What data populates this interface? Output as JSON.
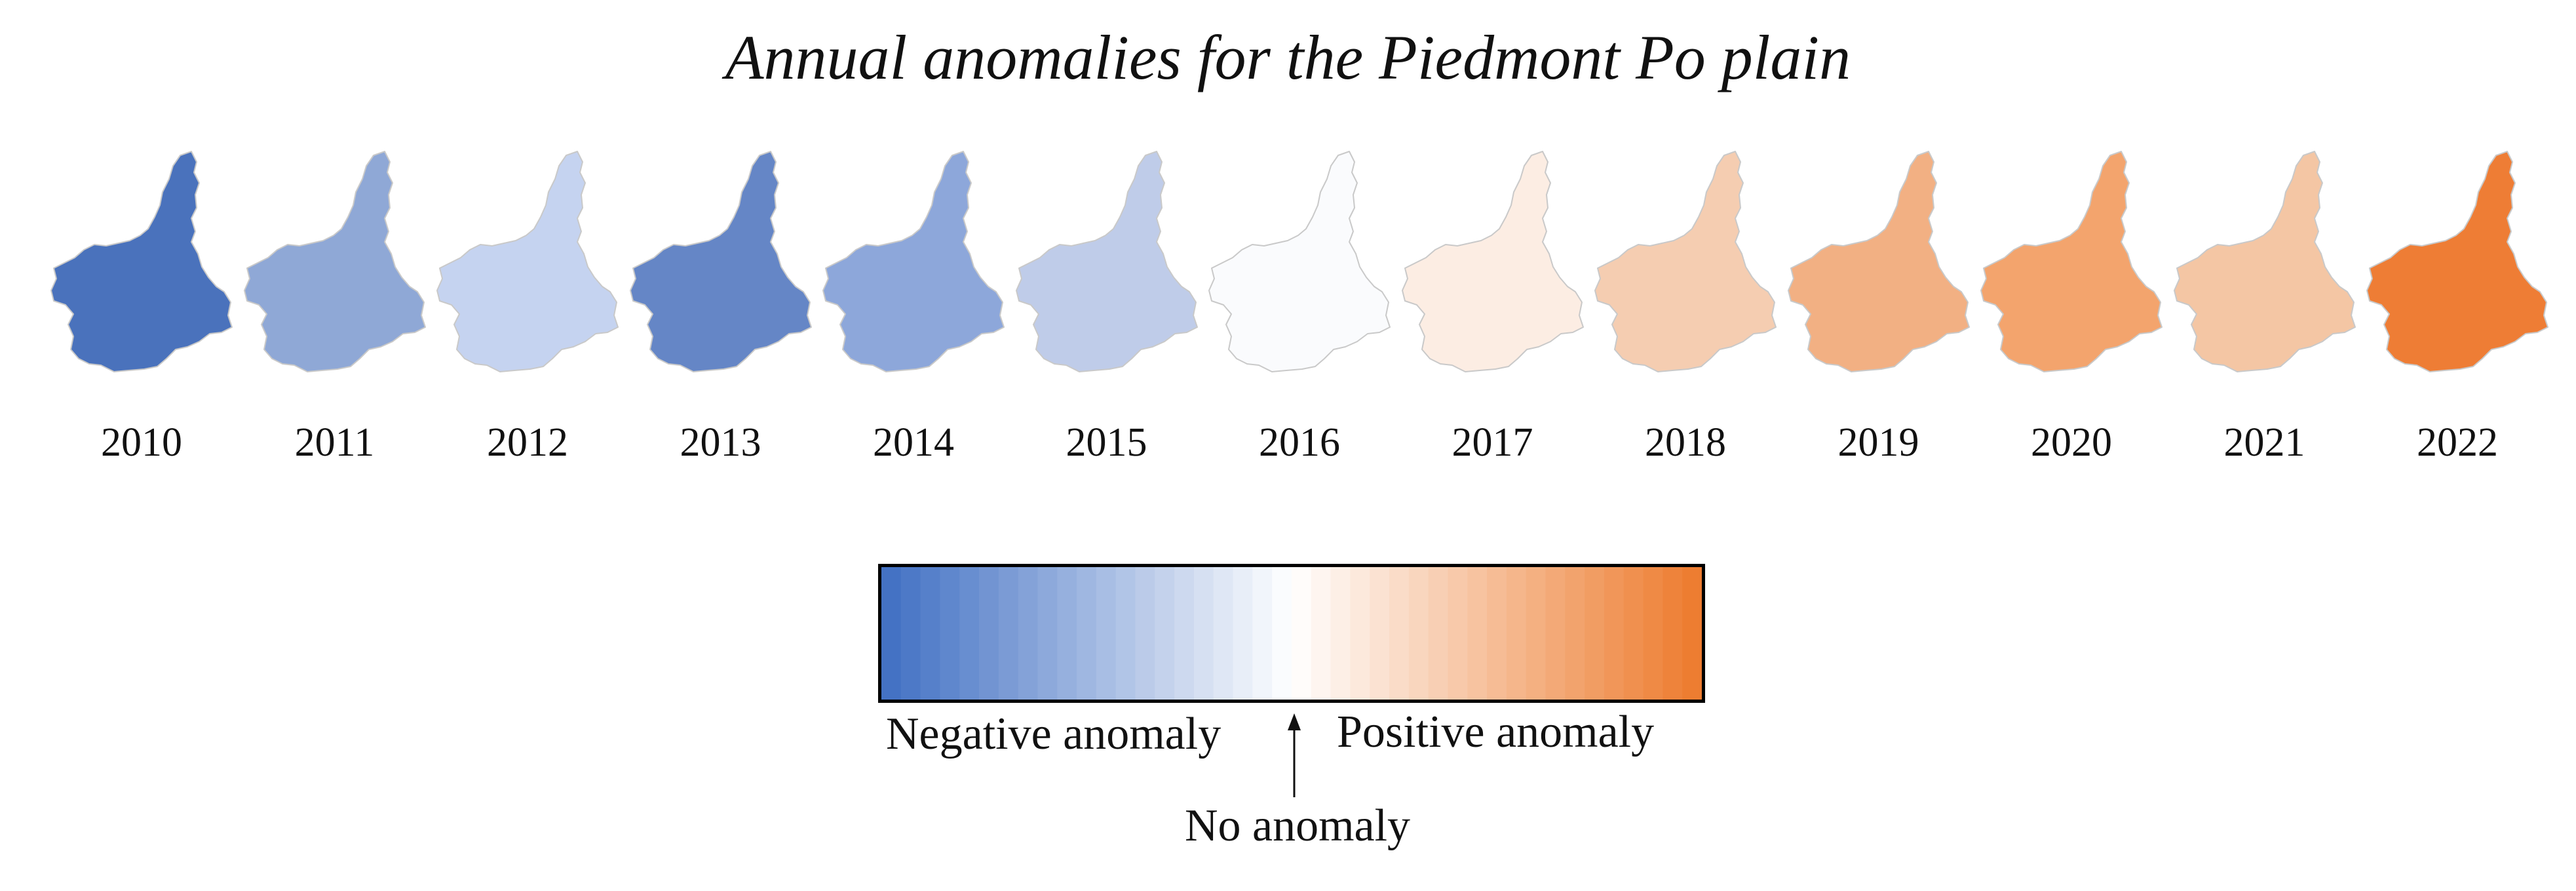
{
  "title": "Annual anomalies for the Piedmont Po plain",
  "region_icon": "piedmont-region-outline",
  "years": [
    {
      "label": "2010",
      "color": "#4A72BC"
    },
    {
      "label": "2011",
      "color": "#8FA8D6"
    },
    {
      "label": "2012",
      "color": "#C5D3F0"
    },
    {
      "label": "2013",
      "color": "#6586C6"
    },
    {
      "label": "2014",
      "color": "#8DA7DA"
    },
    {
      "label": "2015",
      "color": "#BFCCE9"
    },
    {
      "label": "2016",
      "color": "#FAFBFD"
    },
    {
      "label": "2017",
      "color": "#FCEDE3"
    },
    {
      "label": "2018",
      "color": "#F5CDB1"
    },
    {
      "label": "2019",
      "color": "#F2B083"
    },
    {
      "label": "2020",
      "color": "#F3A46D"
    },
    {
      "label": "2021",
      "color": "#F4C6A4"
    },
    {
      "label": "2022",
      "color": "#EE7D35"
    }
  ],
  "legend": {
    "negative_label": "Negative anomaly",
    "positive_label": "Positive anomaly",
    "zero_label": "No anomaly",
    "negative_color": "#4472C4",
    "zero_color": "#FFFFFF",
    "positive_color": "#ED7D31"
  }
}
